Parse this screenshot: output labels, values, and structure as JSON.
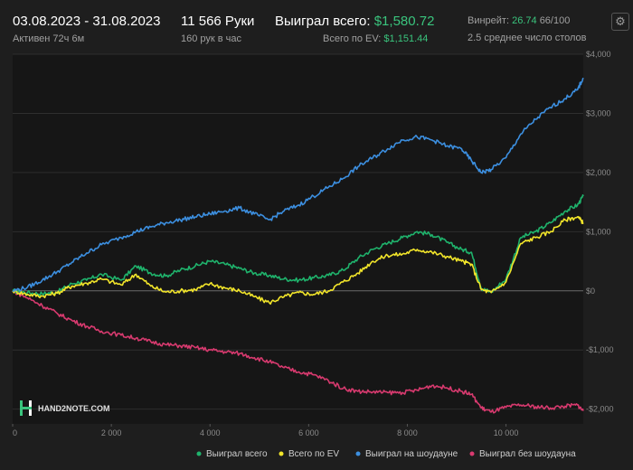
{
  "header": {
    "date_range": "03.08.2023 - 31.08.2023",
    "active_time": "Активен 72ч 6м",
    "hands": "11 566 Руки",
    "hands_per_hour": "160 рук в час",
    "won_total_label": "Выиграл всего:",
    "won_total_value": "$1,580.72",
    "ev_total_label": "Всего по EV:",
    "ev_total_value": "$1,151.44",
    "winrate_label": "Винрейт:",
    "winrate_value": "26.74",
    "winrate_unit": "66/100",
    "avg_tables": "2.5 среднее число столов",
    "settings_icon": "gear-icon"
  },
  "logo": {
    "text": "HAND2NOTE.COM"
  },
  "chart_data": {
    "type": "line",
    "xlim": [
      0,
      11566
    ],
    "ylim": [
      -2250,
      4000
    ],
    "x_ticks": [
      0,
      2000,
      4000,
      6000,
      8000,
      10000
    ],
    "x_tick_labels": [
      "0",
      "2 000",
      "4 000",
      "6 000",
      "8 000",
      "10 000"
    ],
    "y_ticks": [
      4000,
      3000,
      2000,
      1000,
      0,
      -1000,
      -2000
    ],
    "y_tick_labels": [
      "$4,000",
      "$3,000",
      "$2,000",
      "$1,000",
      "$0",
      "-$1,000",
      "-$2,000"
    ],
    "grid": true,
    "legend_position": "bottom-right",
    "series": [
      {
        "name": "Выиграл всего",
        "color": "#1fb36c",
        "points": [
          [
            0,
            0
          ],
          [
            300,
            -30
          ],
          [
            600,
            -50
          ],
          [
            900,
            -20
          ],
          [
            1200,
            120
          ],
          [
            1500,
            180
          ],
          [
            1800,
            280
          ],
          [
            2200,
            180
          ],
          [
            2500,
            420
          ],
          [
            2800,
            300
          ],
          [
            3100,
            250
          ],
          [
            3400,
            350
          ],
          [
            3700,
            420
          ],
          [
            4000,
            500
          ],
          [
            4300,
            450
          ],
          [
            4600,
            380
          ],
          [
            4900,
            300
          ],
          [
            5200,
            260
          ],
          [
            5500,
            200
          ],
          [
            5800,
            180
          ],
          [
            6100,
            220
          ],
          [
            6400,
            260
          ],
          [
            6700,
            350
          ],
          [
            7000,
            550
          ],
          [
            7300,
            700
          ],
          [
            7600,
            800
          ],
          [
            7900,
            900
          ],
          [
            8200,
            1000
          ],
          [
            8500,
            950
          ],
          [
            8800,
            820
          ],
          [
            9100,
            700
          ],
          [
            9300,
            650
          ],
          [
            9500,
            40
          ],
          [
            9700,
            -20
          ],
          [
            10000,
            200
          ],
          [
            10300,
            900
          ],
          [
            10600,
            1000
          ],
          [
            10900,
            1150
          ],
          [
            11200,
            1350
          ],
          [
            11450,
            1450
          ],
          [
            11566,
            1600
          ]
        ]
      },
      {
        "name": "Всего по EV",
        "color": "#f2e52a",
        "points": [
          [
            0,
            0
          ],
          [
            300,
            -60
          ],
          [
            600,
            -90
          ],
          [
            900,
            -40
          ],
          [
            1200,
            80
          ],
          [
            1500,
            130
          ],
          [
            1800,
            200
          ],
          [
            2200,
            100
          ],
          [
            2500,
            280
          ],
          [
            2800,
            80
          ],
          [
            3100,
            -20
          ],
          [
            3400,
            0
          ],
          [
            3700,
            20
          ],
          [
            4000,
            120
          ],
          [
            4300,
            50
          ],
          [
            4600,
            0
          ],
          [
            4900,
            -100
          ],
          [
            5200,
            -200
          ],
          [
            5500,
            -100
          ],
          [
            5800,
            -30
          ],
          [
            6100,
            -60
          ],
          [
            6400,
            0
          ],
          [
            6700,
            150
          ],
          [
            7000,
            300
          ],
          [
            7300,
            500
          ],
          [
            7600,
            600
          ],
          [
            7900,
            620
          ],
          [
            8200,
            700
          ],
          [
            8500,
            650
          ],
          [
            8800,
            580
          ],
          [
            9100,
            500
          ],
          [
            9300,
            450
          ],
          [
            9500,
            20
          ],
          [
            9700,
            -30
          ],
          [
            10000,
            150
          ],
          [
            10300,
            800
          ],
          [
            10600,
            900
          ],
          [
            10900,
            1000
          ],
          [
            11200,
            1200
          ],
          [
            11450,
            1250
          ],
          [
            11566,
            1150
          ]
        ]
      },
      {
        "name": "Выиграл на шоудауне",
        "color": "#3c8fe0",
        "points": [
          [
            0,
            0
          ],
          [
            300,
            60
          ],
          [
            600,
            180
          ],
          [
            900,
            320
          ],
          [
            1200,
            480
          ],
          [
            1500,
            640
          ],
          [
            1800,
            780
          ],
          [
            2200,
            900
          ],
          [
            2500,
            1000
          ],
          [
            2800,
            1080
          ],
          [
            3100,
            1150
          ],
          [
            3400,
            1200
          ],
          [
            3700,
            1250
          ],
          [
            4000,
            1300
          ],
          [
            4300,
            1350
          ],
          [
            4600,
            1400
          ],
          [
            4900,
            1300
          ],
          [
            5200,
            1200
          ],
          [
            5500,
            1350
          ],
          [
            5800,
            1450
          ],
          [
            6100,
            1600
          ],
          [
            6400,
            1750
          ],
          [
            6700,
            1900
          ],
          [
            7000,
            2100
          ],
          [
            7300,
            2250
          ],
          [
            7600,
            2400
          ],
          [
            7900,
            2550
          ],
          [
            8200,
            2600
          ],
          [
            8500,
            2550
          ],
          [
            8800,
            2450
          ],
          [
            9100,
            2400
          ],
          [
            9300,
            2200
          ],
          [
            9500,
            2000
          ],
          [
            9700,
            2050
          ],
          [
            10000,
            2250
          ],
          [
            10300,
            2650
          ],
          [
            10600,
            2900
          ],
          [
            10900,
            3100
          ],
          [
            11200,
            3250
          ],
          [
            11450,
            3400
          ],
          [
            11566,
            3600
          ]
        ]
      },
      {
        "name": "Выиграл без шоудауна",
        "color": "#d83a6f",
        "points": [
          [
            0,
            0
          ],
          [
            300,
            -120
          ],
          [
            600,
            -250
          ],
          [
            900,
            -380
          ],
          [
            1200,
            -500
          ],
          [
            1500,
            -600
          ],
          [
            1800,
            -680
          ],
          [
            2200,
            -750
          ],
          [
            2500,
            -800
          ],
          [
            2800,
            -860
          ],
          [
            3100,
            -910
          ],
          [
            3400,
            -930
          ],
          [
            3700,
            -960
          ],
          [
            4000,
            -1000
          ],
          [
            4300,
            -1030
          ],
          [
            4600,
            -1060
          ],
          [
            4900,
            -1130
          ],
          [
            5200,
            -1200
          ],
          [
            5500,
            -1300
          ],
          [
            5800,
            -1370
          ],
          [
            6100,
            -1420
          ],
          [
            6400,
            -1520
          ],
          [
            6700,
            -1650
          ],
          [
            7000,
            -1700
          ],
          [
            7300,
            -1710
          ],
          [
            7600,
            -1720
          ],
          [
            7900,
            -1720
          ],
          [
            8200,
            -1680
          ],
          [
            8500,
            -1600
          ],
          [
            8800,
            -1640
          ],
          [
            9100,
            -1700
          ],
          [
            9300,
            -1750
          ],
          [
            9500,
            -1980
          ],
          [
            9700,
            -2050
          ],
          [
            10000,
            -1970
          ],
          [
            10300,
            -1930
          ],
          [
            10600,
            -1960
          ],
          [
            10900,
            -1980
          ],
          [
            11200,
            -1950
          ],
          [
            11450,
            -1930
          ],
          [
            11566,
            -2030
          ]
        ]
      }
    ]
  }
}
